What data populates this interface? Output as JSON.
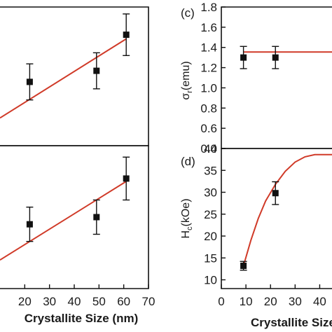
{
  "chart_data": [
    {
      "id": "b",
      "type": "scatter",
      "panel_label": "",
      "xlim": [
        10,
        70
      ],
      "x_ticks": [],
      "ylim": [
        0,
        1
      ],
      "points": [
        {
          "x": 22,
          "y": 0.46,
          "err": 0.13
        },
        {
          "x": 49,
          "y": 0.54,
          "err": 0.13
        },
        {
          "x": 61,
          "y": 0.8,
          "err": 0.15
        }
      ],
      "fit": {
        "type": "linear",
        "x": [
          10,
          61
        ],
        "y": [
          0.2,
          0.77
        ]
      },
      "fit_color": "#d03a28"
    },
    {
      "id": "a",
      "type": "scatter",
      "panel_label": "",
      "xlim": [
        10,
        70
      ],
      "x_ticks": [
        20,
        30,
        40,
        50,
        60,
        70
      ],
      "x_tick_labels": [
        "20",
        "30",
        "40",
        "50",
        "60",
        "70"
      ],
      "xlabel": "Crystallite Size (nm)",
      "ylim": [
        0,
        1
      ],
      "points": [
        {
          "x": 22,
          "y": 0.45,
          "err": 0.12
        },
        {
          "x": 49,
          "y": 0.5,
          "err": 0.12
        },
        {
          "x": 61,
          "y": 0.77,
          "err": 0.15
        }
      ],
      "fit": {
        "type": "linear",
        "x": [
          10,
          61
        ],
        "y": [
          0.2,
          0.75
        ]
      },
      "fit_color": "#d03a28"
    },
    {
      "id": "c",
      "type": "scatter",
      "panel_label": "(c)",
      "ylabel_main": "σ",
      "ylabel_sub": "r",
      "ylabel_rest": "(emu)",
      "xlim": [
        0,
        45
      ],
      "ylim": [
        0.4,
        1.8
      ],
      "y_ticks": [
        0.4,
        0.6,
        0.8,
        1.0,
        1.2,
        1.4,
        1.6,
        1.8
      ],
      "y_tick_labels": [
        "0.4",
        "0.6",
        "0.8",
        "1.0",
        "1.2",
        "1.4",
        "1.6",
        "1.8"
      ],
      "points": [
        {
          "x": 9,
          "y": 1.3,
          "err": 0.11
        },
        {
          "x": 22,
          "y": 1.3,
          "err": 0.11
        }
      ],
      "fit": {
        "type": "constant",
        "x": [
          9,
          45
        ],
        "y": [
          1.355,
          1.355
        ]
      },
      "fit_color": "#d03a28"
    },
    {
      "id": "d",
      "type": "scatter",
      "panel_label": "(d)",
      "ylabel_main": "H",
      "ylabel_sub": "c",
      "ylabel_rest": "(kOe)",
      "xlim": [
        0,
        45
      ],
      "ylim": [
        8,
        40
      ],
      "y_ticks": [
        10,
        15,
        20,
        25,
        30,
        35,
        40
      ],
      "y_tick_labels": [
        "10",
        "15",
        "20",
        "25",
        "30",
        "35",
        "40"
      ],
      "x_ticks": [
        0,
        10,
        20,
        30,
        40
      ],
      "x_tick_labels": [
        "0",
        "10",
        "20",
        "30",
        "40"
      ],
      "xlabel": "Crystallite Size",
      "points": [
        {
          "x": 9,
          "y": 13.2,
          "err": 1.0
        },
        {
          "x": 22,
          "y": 29.8,
          "err": 2.6
        }
      ],
      "fit": {
        "type": "curve",
        "x": [
          9,
          12,
          15,
          18,
          22,
          26,
          30,
          34,
          38,
          42,
          45
        ],
        "y": [
          13.2,
          19.0,
          24.0,
          28.0,
          31.8,
          34.8,
          36.9,
          38.1,
          38.6,
          38.6,
          38.6
        ]
      },
      "fit_color": "#d03a28"
    }
  ]
}
